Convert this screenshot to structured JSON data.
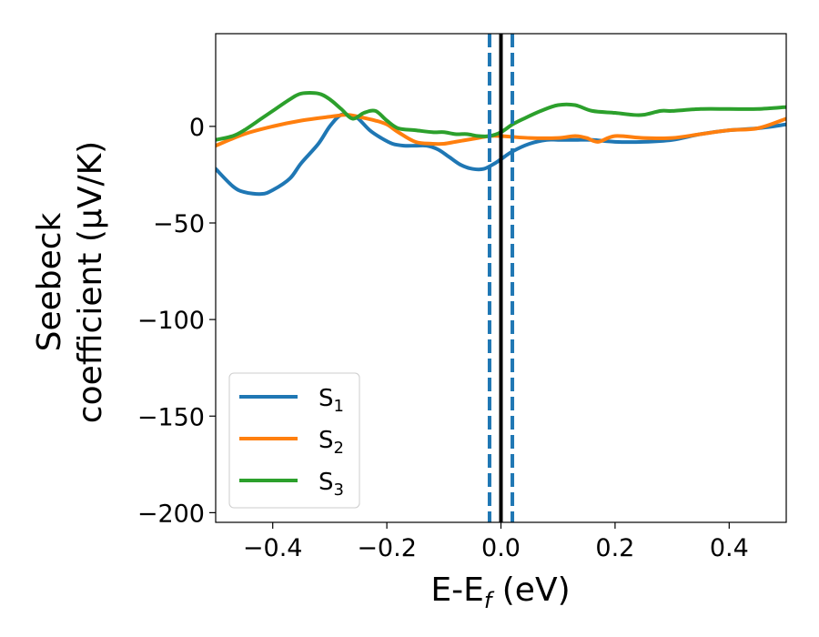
{
  "chart_data": {
    "type": "line",
    "xlabel": "E-E",
    "xlabel_sub": "f",
    "xlabel_unit": " (eV)",
    "ylabel_line1": "Seebeck",
    "ylabel_line2": "coefficient  (μV/K)",
    "xlim": [
      -0.5,
      0.5
    ],
    "ylim": [
      -205,
      48
    ],
    "xticks": [
      -0.4,
      -0.2,
      0.0,
      0.2,
      0.4
    ],
    "xtick_labels": [
      "−0.4",
      "−0.2",
      "0.0",
      "0.2",
      "0.4"
    ],
    "yticks": [
      0,
      -50,
      -100,
      -150,
      -200
    ],
    "ytick_labels": [
      "0",
      "−50",
      "−100",
      "−150",
      "−200"
    ],
    "grid": false,
    "legend_position": "lower-left",
    "series": [
      {
        "name": "S",
        "sub": "1",
        "color": "#1f77b4",
        "x": [
          -0.5,
          -0.47,
          -0.45,
          -0.42,
          -0.4,
          -0.37,
          -0.35,
          -0.32,
          -0.3,
          -0.28,
          -0.26,
          -0.25,
          -0.23,
          -0.21,
          -0.19,
          -0.17,
          -0.15,
          -0.13,
          -0.11,
          -0.09,
          -0.07,
          -0.05,
          -0.03,
          -0.01,
          0.0,
          0.02,
          0.05,
          0.08,
          0.1,
          0.13,
          0.16,
          0.2,
          0.25,
          0.3,
          0.35,
          0.4,
          0.45,
          0.5
        ],
        "y": [
          -22,
          -31,
          -34,
          -35,
          -33,
          -27,
          -19,
          -9,
          0,
          6,
          5,
          4,
          -2,
          -6,
          -9,
          -10,
          -10,
          -10,
          -12,
          -16,
          -20,
          -22,
          -22,
          -19,
          -17,
          -13,
          -9,
          -7,
          -7,
          -7,
          -7,
          -8,
          -8,
          -7,
          -4,
          -2,
          -1,
          1
        ]
      },
      {
        "name": "S",
        "sub": "2",
        "color": "#ff7f0e",
        "x": [
          -0.5,
          -0.45,
          -0.4,
          -0.35,
          -0.3,
          -0.27,
          -0.25,
          -0.22,
          -0.2,
          -0.18,
          -0.15,
          -0.12,
          -0.1,
          -0.08,
          -0.06,
          -0.04,
          -0.02,
          0.0,
          0.05,
          0.1,
          0.13,
          0.15,
          0.17,
          0.2,
          0.25,
          0.3,
          0.35,
          0.4,
          0.45,
          0.5
        ],
        "y": [
          -10,
          -4,
          0,
          3,
          5,
          6,
          5,
          3,
          1,
          -3,
          -8,
          -9,
          -9,
          -8,
          -7,
          -6,
          -5,
          -5,
          -6,
          -6,
          -5,
          -6,
          -8,
          -5,
          -6,
          -6,
          -4,
          -2,
          -1,
          4
        ]
      },
      {
        "name": "S",
        "sub": "3",
        "color": "#2ca02c",
        "x": [
          -0.5,
          -0.47,
          -0.45,
          -0.42,
          -0.4,
          -0.37,
          -0.35,
          -0.32,
          -0.3,
          -0.28,
          -0.26,
          -0.24,
          -0.22,
          -0.2,
          -0.18,
          -0.15,
          -0.12,
          -0.1,
          -0.08,
          -0.06,
          -0.04,
          -0.02,
          0.0,
          0.02,
          0.04,
          0.07,
          0.1,
          0.13,
          0.16,
          0.2,
          0.23,
          0.25,
          0.28,
          0.3,
          0.35,
          0.4,
          0.45,
          0.5
        ],
        "y": [
          -7,
          -5,
          -2,
          4,
          8,
          14,
          17,
          17,
          14,
          9,
          4,
          7,
          8,
          3,
          -1,
          -2,
          -3,
          -3,
          -4,
          -4,
          -5,
          -5,
          -3,
          1,
          4,
          8,
          11,
          11,
          8,
          7,
          6,
          6,
          8,
          8,
          9,
          9,
          9,
          10
        ]
      }
    ],
    "vlines": [
      {
        "x": 0.0,
        "color": "#000000",
        "style": "solid"
      },
      {
        "x": -0.02,
        "color": "#1f77b4",
        "style": "dashed"
      },
      {
        "x": 0.02,
        "color": "#1f77b4",
        "style": "dashed"
      }
    ]
  }
}
